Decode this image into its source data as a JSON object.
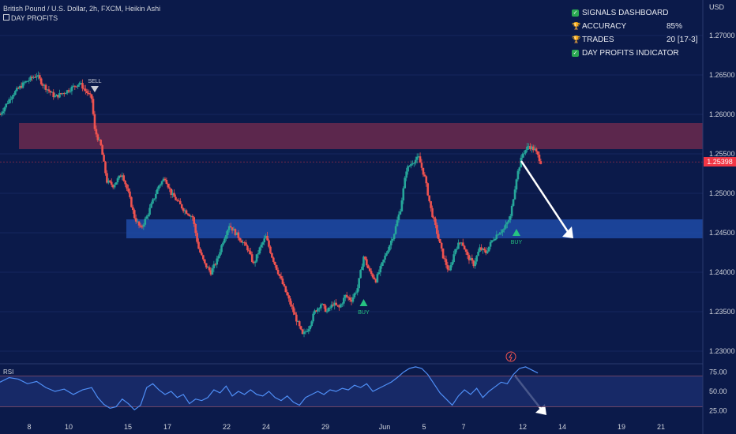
{
  "header": {
    "title": "British Pound / U.S. Dollar, 2h, FXCM, Heikin Ashi",
    "indicator": "DAY PROFITS"
  },
  "dashboard": {
    "rows": [
      {
        "icon": "check-icon",
        "label": "SIGNALS DASHBOARD",
        "value": ""
      },
      {
        "icon": "trophy-icon",
        "label": "ACCURACY",
        "value": "85%"
      },
      {
        "icon": "trophy-icon",
        "label": "TRADES",
        "value": "20 [17-3]"
      },
      {
        "icon": "check-icon",
        "label": "DAY PROFITS INDICATOR",
        "value": ""
      }
    ]
  },
  "price_axis": {
    "currency": "USD",
    "current_price": "1.25398"
  },
  "signals": {
    "sell": "SELL",
    "buy": "BUY"
  },
  "rsi": {
    "label": "RSI"
  },
  "colors": {
    "background": "#0b1a4a",
    "up": "#26a69a",
    "down": "#ef5350",
    "resistance_zone": "#6b2a4e",
    "support_zone": "#1e4ba6",
    "rsi_line": "#4f8ff7",
    "current_price": "#f23645"
  },
  "chart_data": [
    {
      "type": "candlestick",
      "title": "British Pound / U.S. Dollar, 2h, FXCM, Heikin Ashi",
      "ylabel": "USD",
      "ylim": [
        1.2285,
        1.2745
      ],
      "y_ticks": [
        "1.27000",
        "1.26500",
        "1.26000",
        "1.25500",
        "1.25000",
        "1.24500",
        "1.24000",
        "1.23500",
        "1.23000"
      ],
      "x_ticks": [
        "8",
        "10",
        "15",
        "17",
        "22",
        "24",
        "29",
        "Jun",
        "5",
        "7",
        "12",
        "14",
        "19",
        "21"
      ],
      "zones": [
        {
          "name": "resistance",
          "from": 1.2556,
          "to": 1.2589
        },
        {
          "name": "support",
          "from": 1.2443,
          "to": 1.2467
        }
      ],
      "close_path": [
        [
          0,
          1.26
        ],
        [
          4,
          1.2625
        ],
        [
          8,
          1.264
        ],
        [
          12,
          1.265
        ],
        [
          14,
          1.2638
        ],
        [
          18,
          1.2622
        ],
        [
          22,
          1.263
        ],
        [
          26,
          1.264
        ],
        [
          28,
          1.263
        ],
        [
          30,
          1.262
        ],
        [
          31,
          1.258
        ],
        [
          33,
          1.256
        ],
        [
          35,
          1.2515
        ],
        [
          37,
          1.251
        ],
        [
          40,
          1.2525
        ],
        [
          42,
          1.25
        ],
        [
          44,
          1.247
        ],
        [
          46,
          1.2455
        ],
        [
          48,
          1.247
        ],
        [
          52,
          1.251
        ],
        [
          54,
          1.252
        ],
        [
          56,
          1.25
        ],
        [
          60,
          1.248
        ],
        [
          63,
          1.247
        ],
        [
          65,
          1.243
        ],
        [
          67,
          1.241
        ],
        [
          69,
          1.24
        ],
        [
          71,
          1.2415
        ],
        [
          73,
          1.244
        ],
        [
          75,
          1.246
        ],
        [
          77,
          1.245
        ],
        [
          79,
          1.244
        ],
        [
          81,
          1.243
        ],
        [
          83,
          1.241
        ],
        [
          85,
          1.243
        ],
        [
          87,
          1.2445
        ],
        [
          89,
          1.242
        ],
        [
          91,
          1.24
        ],
        [
          93,
          1.238
        ],
        [
          95,
          1.236
        ],
        [
          97,
          1.234
        ],
        [
          99,
          1.232
        ],
        [
          101,
          1.233
        ],
        [
          103,
          1.235
        ],
        [
          105,
          1.236
        ],
        [
          107,
          1.235
        ],
        [
          109,
          1.236
        ],
        [
          111,
          1.2355
        ],
        [
          113,
          1.237
        ],
        [
          115,
          1.2365
        ],
        [
          117,
          1.238
        ],
        [
          119,
          1.242
        ],
        [
          121,
          1.24
        ],
        [
          123,
          1.239
        ],
        [
          125,
          1.241
        ],
        [
          127,
          1.243
        ],
        [
          129,
          1.245
        ],
        [
          131,
          1.248
        ],
        [
          133,
          1.253
        ],
        [
          135,
          1.254
        ],
        [
          137,
          1.2545
        ],
        [
          139,
          1.252
        ],
        [
          141,
          1.248
        ],
        [
          143,
          1.245
        ],
        [
          145,
          1.242
        ],
        [
          147,
          1.24
        ],
        [
          149,
          1.243
        ],
        [
          151,
          1.244
        ],
        [
          153,
          1.242
        ],
        [
          155,
          1.241
        ],
        [
          157,
          1.243
        ],
        [
          159,
          1.2425
        ],
        [
          161,
          1.244
        ],
        [
          163,
          1.245
        ],
        [
          165,
          1.2455
        ],
        [
          167,
          1.247
        ],
        [
          169,
          1.252
        ],
        [
          171,
          1.255
        ],
        [
          173,
          1.256
        ],
        [
          175,
          1.2555
        ],
        [
          177,
          1.254
        ]
      ],
      "x_range": [
        0,
        230
      ],
      "signals": [
        {
          "label": "SELL",
          "x": 31,
          "y": 1.263
        },
        {
          "label": "BUY",
          "x": 119,
          "y": 1.2363
        },
        {
          "label": "BUY",
          "x": 169,
          "y": 1.2452
        }
      ]
    },
    {
      "type": "line",
      "title": "RSI",
      "ylim": [
        15,
        85
      ],
      "y_ticks": [
        "75.00",
        "50.00",
        "25.00"
      ],
      "bands": [
        30,
        70
      ],
      "x_range": [
        0,
        230
      ],
      "values": [
        [
          0,
          62
        ],
        [
          3,
          68
        ],
        [
          6,
          66
        ],
        [
          9,
          60
        ],
        [
          12,
          63
        ],
        [
          15,
          55
        ],
        [
          18,
          50
        ],
        [
          21,
          53
        ],
        [
          24,
          46
        ],
        [
          27,
          52
        ],
        [
          30,
          55
        ],
        [
          32,
          42
        ],
        [
          34,
          33
        ],
        [
          36,
          28
        ],
        [
          38,
          30
        ],
        [
          40,
          40
        ],
        [
          42,
          34
        ],
        [
          44,
          26
        ],
        [
          46,
          32
        ],
        [
          48,
          55
        ],
        [
          50,
          60
        ],
        [
          52,
          52
        ],
        [
          54,
          46
        ],
        [
          56,
          50
        ],
        [
          58,
          42
        ],
        [
          60,
          46
        ],
        [
          62,
          34
        ],
        [
          64,
          40
        ],
        [
          66,
          38
        ],
        [
          68,
          42
        ],
        [
          70,
          52
        ],
        [
          72,
          48
        ],
        [
          74,
          57
        ],
        [
          76,
          44
        ],
        [
          78,
          50
        ],
        [
          80,
          46
        ],
        [
          82,
          52
        ],
        [
          84,
          46
        ],
        [
          86,
          44
        ],
        [
          88,
          50
        ],
        [
          90,
          42
        ],
        [
          92,
          38
        ],
        [
          94,
          44
        ],
        [
          96,
          36
        ],
        [
          98,
          32
        ],
        [
          100,
          42
        ],
        [
          102,
          46
        ],
        [
          104,
          50
        ],
        [
          106,
          46
        ],
        [
          108,
          52
        ],
        [
          110,
          50
        ],
        [
          112,
          54
        ],
        [
          114,
          52
        ],
        [
          116,
          58
        ],
        [
          118,
          55
        ],
        [
          120,
          60
        ],
        [
          122,
          50
        ],
        [
          124,
          54
        ],
        [
          126,
          58
        ],
        [
          128,
          62
        ],
        [
          130,
          68
        ],
        [
          132,
          75
        ],
        [
          134,
          80
        ],
        [
          136,
          82
        ],
        [
          138,
          80
        ],
        [
          140,
          72
        ],
        [
          142,
          60
        ],
        [
          144,
          48
        ],
        [
          146,
          40
        ],
        [
          148,
          32
        ],
        [
          150,
          44
        ],
        [
          152,
          52
        ],
        [
          154,
          46
        ],
        [
          156,
          54
        ],
        [
          158,
          42
        ],
        [
          160,
          50
        ],
        [
          162,
          56
        ],
        [
          164,
          62
        ],
        [
          166,
          60
        ],
        [
          168,
          72
        ],
        [
          170,
          80
        ],
        [
          172,
          82
        ],
        [
          174,
          78
        ],
        [
          176,
          74
        ]
      ]
    }
  ]
}
